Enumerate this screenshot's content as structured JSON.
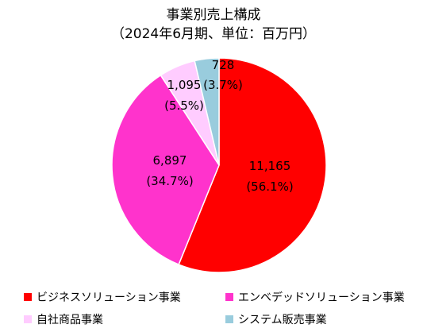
{
  "chart_data": {
    "type": "pie",
    "title": "事業別売上構成",
    "subtitle": "（2024年6月期、単位：百万円）",
    "slices": [
      {
        "name": "ビジネスソリューション事業",
        "value": 11165,
        "value_label": "11,165",
        "pct_label": "(56.1%)",
        "color": "#ff0000"
      },
      {
        "name": "エンベデッドソリューション事業",
        "value": 6897,
        "value_label": "6,897",
        "pct_label": "(34.7%)",
        "color": "#ff33cc"
      },
      {
        "name": "自社商品事業",
        "value": 1095,
        "value_label": "1,095",
        "pct_label": "(5.5%)",
        "color": "#ffccff"
      },
      {
        "name": "システム販売事業",
        "value": 728,
        "value_label": "728",
        "pct_label": "(3.7%)",
        "color": "#99ccdd"
      }
    ],
    "legend_position": "bottom"
  }
}
